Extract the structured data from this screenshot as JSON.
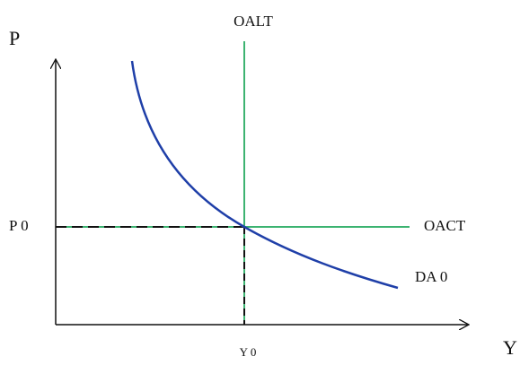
{
  "axes": {
    "y_label": "P",
    "x_label": "Y"
  },
  "curves": [
    {
      "label": "OALT"
    },
    {
      "label": "OACT"
    },
    {
      "label": "DA 0"
    }
  ],
  "equilibrium": {
    "price_label": "P 0",
    "output_label": "Y 0"
  }
}
